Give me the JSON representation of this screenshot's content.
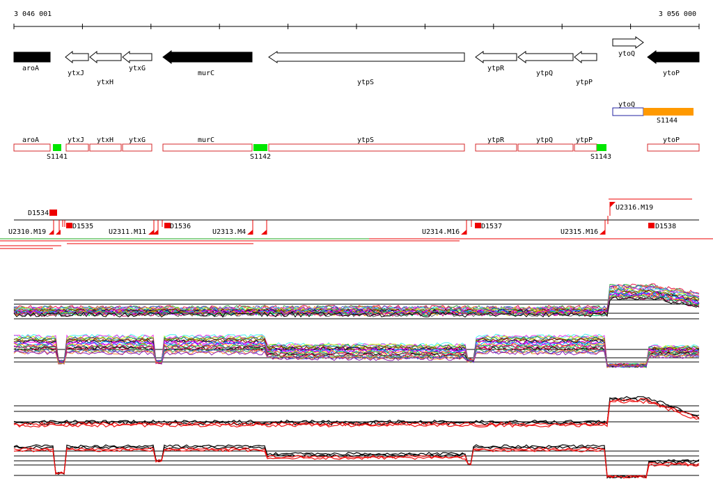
{
  "coords": {
    "start_label": "3 046 001",
    "end_label": "3 056 000"
  },
  "colors": {
    "feature_outline": "#d62728",
    "sigma_box": "#00e600",
    "orange_box": "#ff9900",
    "blue_box": "#2020a0",
    "marker": "#ee0000",
    "profile_dark": "#000000",
    "profile_red": "#ee1111"
  },
  "genes": [
    {
      "name": "aroA",
      "strand": "+",
      "fill": "black"
    },
    {
      "name": "ytxJ",
      "strand": "-",
      "fill": "white"
    },
    {
      "name": "ytxH",
      "strand": "-",
      "fill": "white"
    },
    {
      "name": "ytxG",
      "strand": "-",
      "fill": "white"
    },
    {
      "name": "murC",
      "strand": "-",
      "fill": "black"
    },
    {
      "name": "ytpS",
      "strand": "-",
      "fill": "white"
    },
    {
      "name": "ytpR",
      "strand": "-",
      "fill": "white"
    },
    {
      "name": "ytpQ",
      "strand": "-",
      "fill": "white"
    },
    {
      "name": "ytpP",
      "strand": "-",
      "fill": "white"
    },
    {
      "name": "ytoQ",
      "strand": "+",
      "fill": "white"
    },
    {
      "name": "ytoP",
      "strand": "-",
      "fill": "black"
    }
  ],
  "segment_row": {
    "ytoQ": "ytoQ",
    "S1144": "S1144"
  },
  "feature_boxes": [
    "aroA",
    "ytxJ",
    "ytxH",
    "ytxG",
    "murC",
    "ytpS",
    "ytpR",
    "ytpQ",
    "ytpP",
    "ytoP"
  ],
  "sigma_sites": [
    "S1141",
    "S1142",
    "S1143"
  ],
  "markers": {
    "d_labels": [
      "D1534",
      "D1535",
      "D1536",
      "D1537",
      "D1538"
    ],
    "u_labels": [
      "U2316.M19",
      "U2314.M16",
      "U2315.M16",
      "U2310.M19",
      "U2311.M11",
      "U2313.M4"
    ]
  }
}
